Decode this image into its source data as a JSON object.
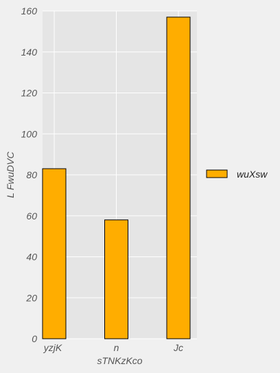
{
  "chart_data": {
    "type": "bar",
    "categories": [
      "yzjK",
      "n",
      "Jc"
    ],
    "series": [
      {
        "name": "wuXsw",
        "values": [
          83,
          58,
          157
        ]
      }
    ],
    "xlabel": "sTNKzKco",
    "ylabel": "L FwuDVC",
    "ylim": [
      0,
      160
    ],
    "yticks": [
      0,
      20,
      40,
      60,
      80,
      100,
      120,
      140,
      160
    ],
    "grid": true,
    "legend_position": "right",
    "colors": {
      "bar": "#ffad00",
      "bar_edge": "#000000",
      "plot_background": "#e5e5e5",
      "figure_background": "#f0f0f0",
      "grid": "#ffffff"
    }
  }
}
